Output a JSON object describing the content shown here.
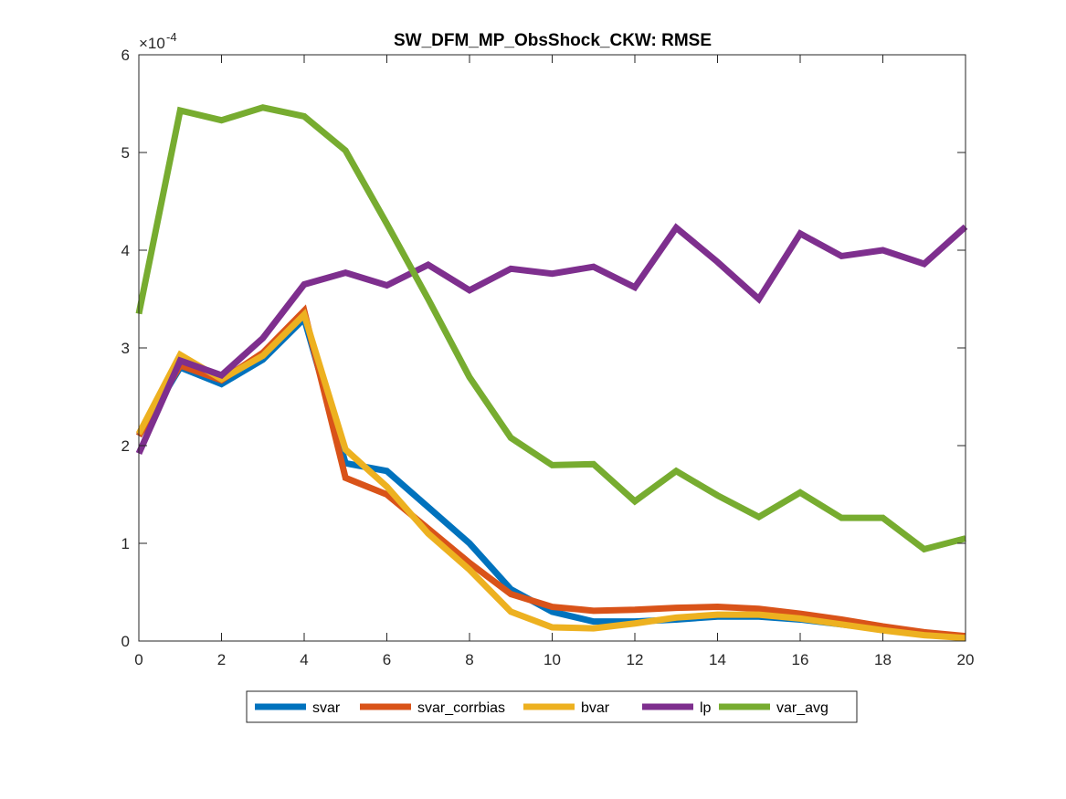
{
  "chart_data": {
    "type": "line",
    "title": "SW_DFM_MP_ObsShock_CKW: RMSE",
    "xlabel": "",
    "ylabel": "",
    "xlim": [
      0,
      20
    ],
    "ylim": [
      0,
      6
    ],
    "y_exponent_label": "×10",
    "y_exponent_value": "-4",
    "x_ticks": [
      0,
      2,
      4,
      6,
      8,
      10,
      12,
      14,
      16,
      18,
      20
    ],
    "x_tick_labels": [
      "0",
      "2",
      "4",
      "6",
      "8",
      "10",
      "12",
      "14",
      "16",
      "18",
      "20"
    ],
    "y_ticks": [
      0,
      1,
      2,
      3,
      4,
      5,
      6
    ],
    "y_tick_labels": [
      "0",
      "1",
      "2",
      "3",
      "4",
      "5",
      "6"
    ],
    "grid": false,
    "legend_position": "bottom, outside plot, horizontal",
    "x": [
      0,
      1,
      2,
      3,
      4,
      5,
      6,
      7,
      8,
      9,
      10,
      11,
      12,
      13,
      14,
      15,
      16,
      17,
      18,
      19,
      20
    ],
    "series": [
      {
        "name": "svar",
        "color": "#0072BD",
        "values": [
          2.1,
          2.8,
          2.63,
          2.88,
          3.3,
          1.82,
          1.74,
          1.37,
          1.0,
          0.53,
          0.3,
          0.2,
          0.2,
          0.22,
          0.25,
          0.25,
          0.22,
          0.17,
          0.12,
          0.07,
          0.04
        ]
      },
      {
        "name": "svar_corrbias",
        "color": "#D95319",
        "values": [
          2.1,
          2.82,
          2.67,
          2.95,
          3.38,
          1.67,
          1.5,
          1.15,
          0.8,
          0.48,
          0.35,
          0.31,
          0.32,
          0.34,
          0.35,
          0.33,
          0.28,
          0.22,
          0.15,
          0.09,
          0.05
        ]
      },
      {
        "name": "bvar",
        "color": "#EDB120",
        "values": [
          2.12,
          2.93,
          2.68,
          2.92,
          3.34,
          1.96,
          1.58,
          1.1,
          0.73,
          0.3,
          0.14,
          0.13,
          0.18,
          0.24,
          0.27,
          0.27,
          0.23,
          0.17,
          0.11,
          0.06,
          0.03
        ]
      },
      {
        "name": "lp",
        "color": "#7E2F8E",
        "values": [
          1.92,
          2.87,
          2.72,
          3.1,
          3.65,
          3.77,
          3.64,
          3.85,
          3.59,
          3.81,
          3.76,
          3.83,
          3.62,
          4.23,
          3.88,
          3.5,
          4.17,
          3.94,
          4.0,
          3.86,
          4.24
        ]
      },
      {
        "name": "var_avg",
        "color": "#77AC30",
        "values": [
          3.35,
          5.43,
          5.33,
          5.46,
          5.37,
          5.02,
          4.27,
          3.5,
          2.7,
          2.08,
          1.8,
          1.81,
          1.43,
          1.74,
          1.49,
          1.27,
          1.52,
          1.26,
          1.26,
          0.94,
          1.05
        ]
      }
    ]
  }
}
